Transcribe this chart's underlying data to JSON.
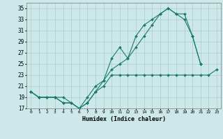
{
  "xlabel": "Humidex (Indice chaleur)",
  "background_color": "#cce8e8",
  "grid_color": "#aacccc",
  "line_color": "#1a7a6e",
  "x_hours": [
    0,
    1,
    2,
    3,
    4,
    5,
    6,
    7,
    8,
    9,
    10,
    11,
    12,
    13,
    14,
    15,
    16,
    17,
    18,
    19,
    20,
    21,
    22,
    23
  ],
  "series1": [
    20,
    19,
    19,
    19,
    18,
    18,
    17,
    18,
    20,
    22,
    26,
    28,
    26,
    30,
    32,
    33,
    34,
    35,
    34,
    34,
    30,
    25,
    null,
    null
  ],
  "series2": [
    20,
    19,
    19,
    19,
    18,
    18,
    17,
    19,
    21,
    22,
    24,
    25,
    26,
    28,
    30,
    32,
    34,
    35,
    34,
    33,
    30,
    25,
    null,
    null
  ],
  "series3": [
    20,
    19,
    19,
    19,
    19,
    18,
    17,
    18,
    20,
    21,
    23,
    23,
    23,
    23,
    23,
    23,
    23,
    23,
    23,
    23,
    23,
    23,
    23,
    24
  ],
  "ylim": [
    17,
    36
  ],
  "yticks": [
    17,
    19,
    21,
    23,
    25,
    27,
    29,
    31,
    33,
    35
  ],
  "xlim": [
    -0.5,
    23.5
  ],
  "figwidth": 3.2,
  "figheight": 2.0,
  "dpi": 100
}
